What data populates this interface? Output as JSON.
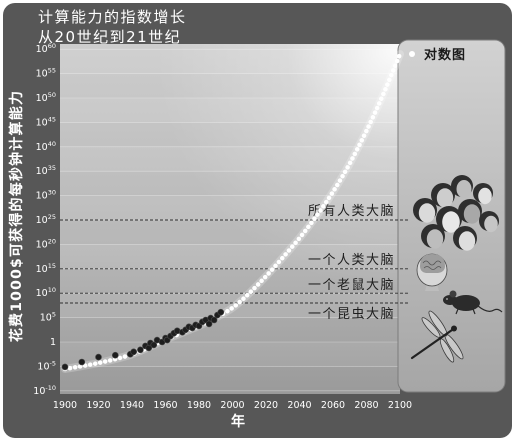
{
  "chart_data": {
    "type": "scatter",
    "title": "计算能力的指数增长",
    "subtitle": "从20世纪到21世纪",
    "xlabel": "年",
    "ylabel": "花费1000$可获得的每秒钟计算能力",
    "xlim": [
      1900,
      2100
    ],
    "x_ticks": [
      1900,
      1920,
      1940,
      1960,
      1980,
      2000,
      2020,
      2040,
      2060,
      2080,
      2100
    ],
    "y_scale": "log",
    "ylim": [
      1e-10,
      1e+60
    ],
    "y_ticks": [
      1e+60,
      1e+55,
      1e+50,
      1e+45,
      1e+40,
      1e+35,
      1e+30,
      1e+25,
      1e+20,
      1000000000000000.0,
      10000000000.0,
      100000.0,
      1,
      1e-05,
      1e-10
    ],
    "grid": true,
    "series": [
      {
        "type": "scatter",
        "x": [
          1900,
          1910,
          1920,
          1930,
          1939,
          1941,
          1945,
          1948,
          1950,
          1951,
          1953,
          1955,
          1958,
          1960,
          1961,
          1963,
          1965,
          1967,
          1970,
          1972,
          1974,
          1976,
          1978,
          1980,
          1982,
          1984,
          1986,
          1987,
          1989,
          1991,
          1993
        ],
        "y": [
          7.9e-06,
          7.9e-05,
          0.00079,
          0.002,
          0.0032,
          0.01,
          0.025,
          0.16,
          0.063,
          0.63,
          0.25,
          2.5,
          1,
          6.3,
          2.5,
          16,
          63,
          200,
          100,
          320,
          1300,
          790,
          3200,
          2000,
          13000,
          32000,
          5000,
          79000,
          32000,
          320000,
          1300000
        ]
      },
      {
        "type": "line",
        "style": "dotted",
        "x": [
          1900,
          1920,
          1940,
          1960,
          1980,
          1990,
          2000,
          2010,
          2020,
          2030,
          2040,
          2050,
          2060,
          2070,
          2080,
          2090,
          2100
        ],
        "y": [
          3e-06,
          5e-05,
          0.003,
          3,
          2000,
          100000.0,
          10000000.0,
          10000000000.0,
          30000000000000.0,
          2e+17,
          2e+21,
          6e+25,
          6e+30,
          4e+36,
          2e+43,
          6e+50,
          1e+59
        ]
      }
    ],
    "reference_lines": [
      {
        "label": "所有人类大脑",
        "y": 1e+25
      },
      {
        "label": "一个人类大脑",
        "y": 1000000000000000.0
      },
      {
        "label": "一个老鼠大脑",
        "y": 10000000000.0
      },
      {
        "label": "一个昆虫大脑",
        "y": 100000000.0
      }
    ]
  },
  "right_panel": {
    "label": "对数图",
    "images": [
      "human-heads-icon",
      "human-brain-icon",
      "mouse-icon",
      "dragonfly-icon"
    ]
  },
  "colors": {
    "frame": "#575757",
    "data_dot": "#1e1e1e",
    "trend": "#ffffff",
    "reference_line": "#2e2e2e"
  }
}
